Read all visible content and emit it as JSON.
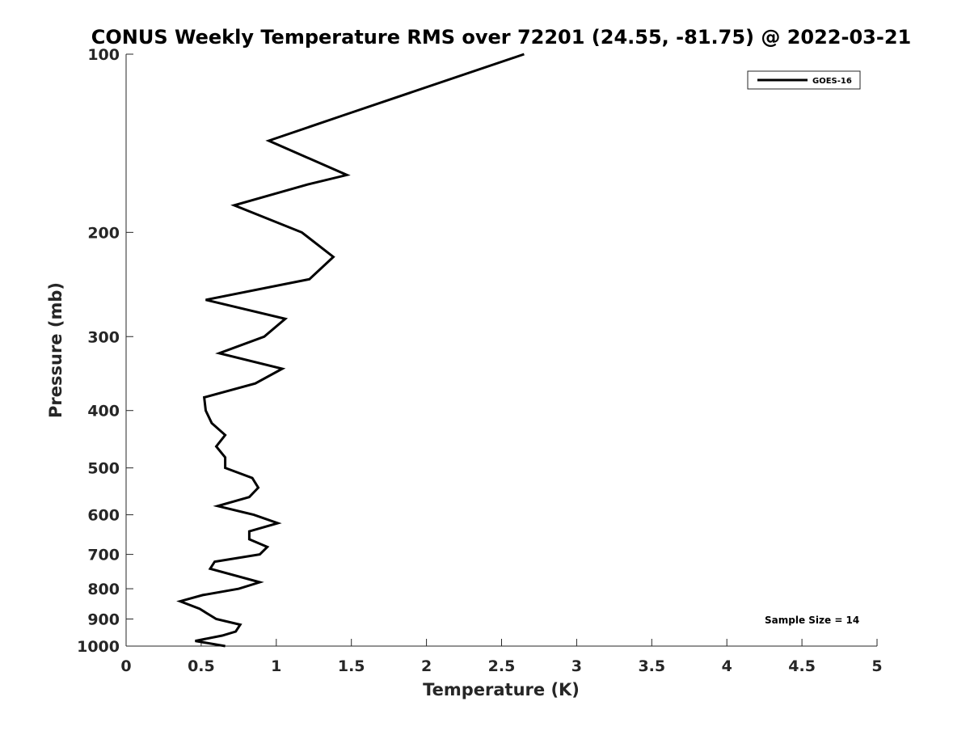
{
  "chart_data": {
    "type": "line",
    "title": "CONUS Weekly Temperature RMS over 72201 (24.55, -81.75) @ 2022-03-21",
    "xlabel": "Temperature (K)",
    "ylabel": "Pressure (mb)",
    "xlim": [
      0,
      5
    ],
    "ylim": [
      100,
      1000
    ],
    "yscale": "log",
    "y_reversed": true,
    "grid": false,
    "xticks": [
      "0",
      "0.5",
      "1",
      "1.5",
      "2",
      "2.5",
      "3",
      "3.5",
      "4",
      "4.5",
      "5"
    ],
    "xtick_values": [
      0,
      0.5,
      1,
      1.5,
      2,
      2.5,
      3,
      3.5,
      4,
      4.5,
      5
    ],
    "yticks": [
      "100",
      "200",
      "300",
      "400",
      "500",
      "600",
      "700",
      "800",
      "900",
      "1000"
    ],
    "ytick_values": [
      100,
      200,
      300,
      400,
      500,
      600,
      700,
      800,
      900,
      1000
    ],
    "legend_position": "top-right",
    "annotation": "Sample Size = 14",
    "series": [
      {
        "name": "GOES-16",
        "color": "#000000",
        "points": [
          [
            2.65,
            100
          ],
          [
            1.44,
            127
          ],
          [
            0.95,
            140
          ],
          [
            1.47,
            160
          ],
          [
            1.21,
            166
          ],
          [
            0.72,
            180
          ],
          [
            1.17,
            200
          ],
          [
            1.38,
            220
          ],
          [
            1.22,
            240
          ],
          [
            0.53,
            260
          ],
          [
            1.06,
            280
          ],
          [
            0.92,
            300
          ],
          [
            0.62,
            320
          ],
          [
            1.04,
            340
          ],
          [
            0.86,
            360
          ],
          [
            0.52,
            380
          ],
          [
            0.53,
            400
          ],
          [
            0.57,
            420
          ],
          [
            0.66,
            440
          ],
          [
            0.6,
            460
          ],
          [
            0.66,
            480
          ],
          [
            0.66,
            500
          ],
          [
            0.84,
            520
          ],
          [
            0.88,
            540
          ],
          [
            0.82,
            560
          ],
          [
            0.61,
            580
          ],
          [
            0.85,
            600
          ],
          [
            1.01,
            620
          ],
          [
            0.82,
            640
          ],
          [
            0.82,
            660
          ],
          [
            0.94,
            680
          ],
          [
            0.89,
            700
          ],
          [
            0.59,
            720
          ],
          [
            0.56,
            740
          ],
          [
            0.89,
            780
          ],
          [
            0.75,
            800
          ],
          [
            0.51,
            820
          ],
          [
            0.36,
            840
          ],
          [
            0.49,
            865
          ],
          [
            0.6,
            900
          ],
          [
            0.76,
            920
          ],
          [
            0.73,
            945
          ],
          [
            0.64,
            960
          ],
          [
            0.46,
            980
          ],
          [
            0.66,
            1000
          ]
        ]
      }
    ]
  }
}
